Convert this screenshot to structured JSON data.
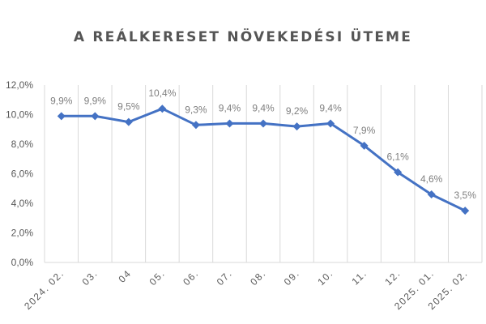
{
  "chart_data": {
    "type": "line",
    "title": "A REÁLKERESET NÖVEKEDÉSI ÜTEME",
    "categories": [
      "2024. 02.",
      "03.",
      "04",
      "05.",
      "06.",
      "07.",
      "08.",
      "09.",
      "10.",
      "11.",
      "12.",
      "2025. 01.",
      "2025. 02."
    ],
    "series": [
      {
        "values": [
          9.9,
          9.9,
          9.5,
          10.4,
          9.3,
          9.4,
          9.4,
          9.2,
          9.4,
          7.9,
          6.1,
          4.6,
          3.5
        ]
      }
    ],
    "data_labels": [
      "9,9%",
      "9,9%",
      "9,5%",
      "10,4%",
      "9,3%",
      "9,4%",
      "9,4%",
      "9,2%",
      "9,4%",
      "7,9%",
      "6,1%",
      "4,6%",
      "3,5%"
    ],
    "y_ticks": [
      "0,0%",
      "2,0%",
      "4,0%",
      "6,0%",
      "8,0%",
      "10,0%",
      "12,0%"
    ],
    "ylim": [
      0,
      12
    ],
    "xlabel": "",
    "ylabel": "",
    "grid": "vertical",
    "legend": "none",
    "colors": {
      "line": "#4472c4",
      "grid": "#d9d9d9",
      "text": "#595959",
      "data_label": "#7f7f7f",
      "title": "#555555"
    }
  }
}
